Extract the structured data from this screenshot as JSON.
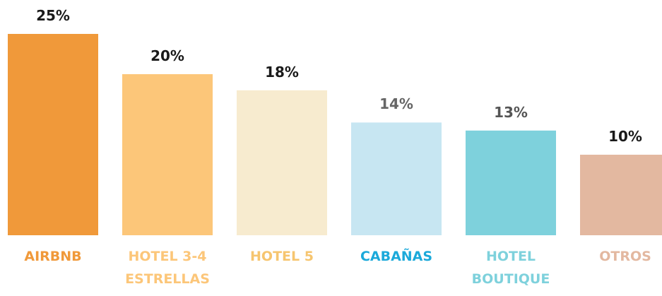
{
  "chart_data": {
    "type": "bar",
    "categories": [
      "AIRBNB",
      "HOTEL 3-4 ESTRELLAS",
      "HOTEL 5",
      "CABAÑAS",
      "HOTEL BOUTIQUE",
      "OTROS"
    ],
    "values": [
      25,
      20,
      18,
      14,
      13,
      10
    ],
    "value_labels": [
      "25%",
      "20%",
      "18%",
      "14%",
      "13%",
      "10%"
    ],
    "colors": [
      "#F0993A",
      "#FCC679",
      "#F7EBCF",
      "#C7E6F2",
      "#7ED1DC",
      "#E3B8A0"
    ],
    "category_colors": [
      "#F0993A",
      "#FCC679",
      "#F6C56F",
      "#1BA9DA",
      "#7ED1DC",
      "#E3B8A0"
    ],
    "value_label_colors": [
      "#1a1a1a",
      "#1a1a1a",
      "#1a1a1a",
      "#666666",
      "#555555",
      "#1a1a1a"
    ]
  }
}
